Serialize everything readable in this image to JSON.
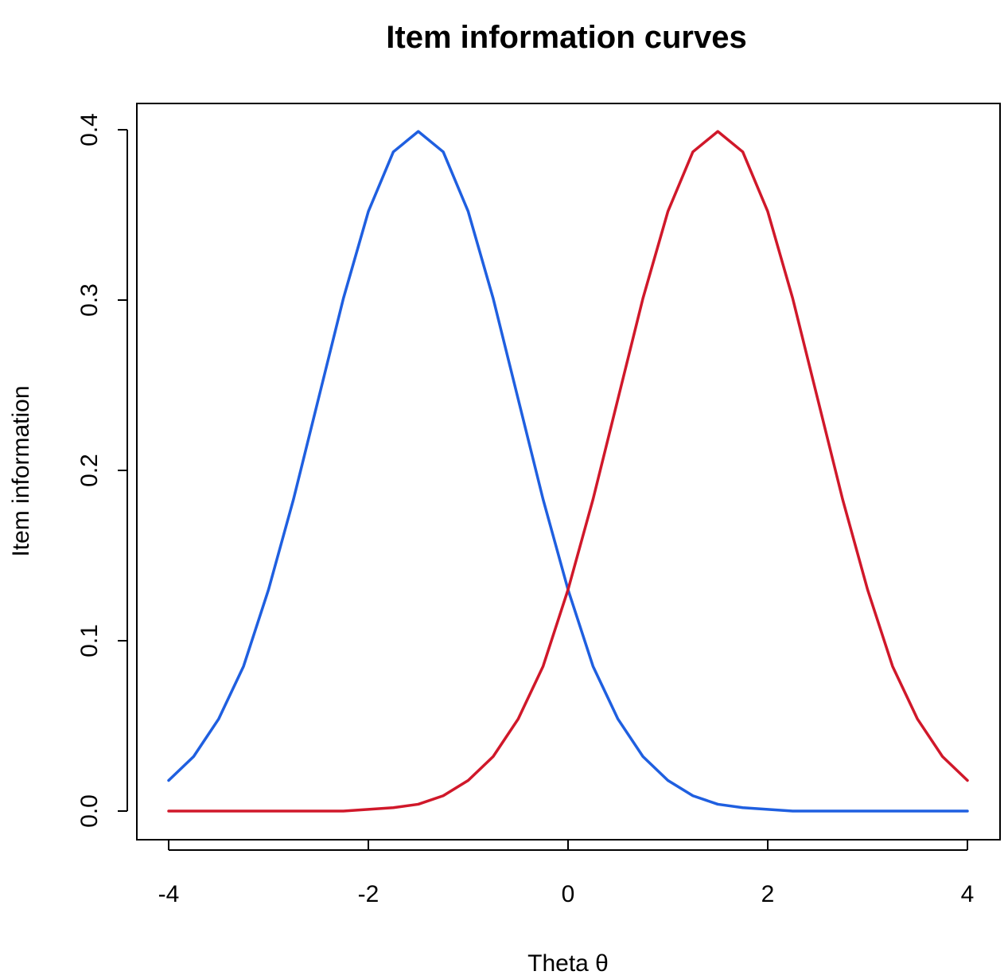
{
  "chart_data": {
    "type": "line",
    "title": "Item information curves",
    "xlabel": "Theta θ",
    "ylabel": "Item information",
    "xlim": [
      -4,
      4
    ],
    "ylim": [
      0,
      0.4
    ],
    "xticks": [
      -4,
      -2,
      0,
      2,
      4
    ],
    "xtick_labels": [
      "-4",
      "-2",
      "0",
      "2",
      "4"
    ],
    "yticks": [
      0,
      0.1,
      0.2,
      0.3,
      0.4
    ],
    "ytick_labels": [
      "0.0",
      "0.1",
      "0.2",
      "0.3",
      "0.4"
    ],
    "grid": false,
    "legend": "none",
    "series": [
      {
        "color": "#1f5fe0",
        "x": [
          -4,
          -3.75,
          -3.5,
          -3.25,
          -3,
          -2.75,
          -2.5,
          -2.25,
          -2,
          -1.75,
          -1.5,
          -1.25,
          -1,
          -0.75,
          -0.5,
          -0.25,
          0,
          0.25,
          0.5,
          0.75,
          1,
          1.25,
          1.5,
          1.75,
          2,
          2.25,
          2.5,
          2.75,
          3,
          3.25,
          3.5,
          3.75,
          4
        ],
        "y": [
          0.018,
          0.032,
          0.054,
          0.085,
          0.13,
          0.183,
          0.242,
          0.301,
          0.352,
          0.387,
          0.399,
          0.387,
          0.352,
          0.301,
          0.242,
          0.183,
          0.13,
          0.085,
          0.054,
          0.032,
          0.018,
          0.009,
          0.004,
          0.002,
          0.001,
          0,
          0,
          0,
          0,
          0,
          0,
          0,
          0
        ]
      },
      {
        "color": "#d0182a",
        "x": [
          -4,
          -3.75,
          -3.5,
          -3.25,
          -3,
          -2.75,
          -2.5,
          -2.25,
          -2,
          -1.75,
          -1.5,
          -1.25,
          -1,
          -0.75,
          -0.5,
          -0.25,
          0,
          0.25,
          0.5,
          0.75,
          1,
          1.25,
          1.5,
          1.75,
          2,
          2.25,
          2.5,
          2.75,
          3,
          3.25,
          3.5,
          3.75,
          4
        ],
        "y": [
          0,
          0,
          0,
          0,
          0,
          0,
          0,
          0,
          0.001,
          0.002,
          0.004,
          0.009,
          0.018,
          0.032,
          0.054,
          0.085,
          0.13,
          0.183,
          0.242,
          0.301,
          0.352,
          0.387,
          0.399,
          0.387,
          0.352,
          0.301,
          0.242,
          0.183,
          0.13,
          0.085,
          0.054,
          0.032,
          0.018
        ]
      }
    ]
  }
}
